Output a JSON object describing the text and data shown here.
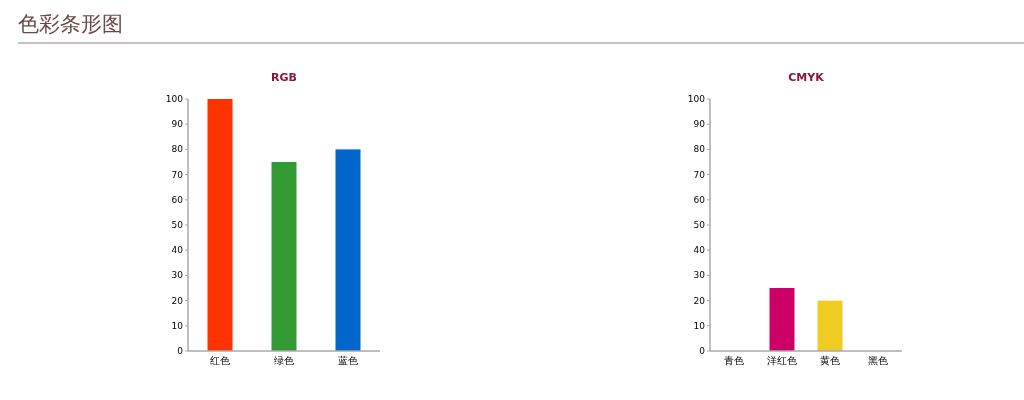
{
  "chart_data": [
    {
      "type": "other",
      "title": "色彩条形图"
    },
    {
      "type": "bar",
      "title": "RGB",
      "categories": [
        "红色",
        "绿色",
        "蓝色"
      ],
      "colors": [
        "#ff3300",
        "#339933",
        "#0066cc"
      ],
      "values": [
        100,
        75,
        80
      ],
      "ylim": [
        0,
        100
      ],
      "yticks": [
        0,
        10,
        20,
        30,
        40,
        50,
        60,
        70,
        80,
        90,
        100
      ]
    },
    {
      "type": "bar",
      "title": "CMYK",
      "categories": [
        "青色",
        "洋红色",
        "黄色",
        "黑色"
      ],
      "colors": [
        "#00aeef",
        "#cc0066",
        "#eecc22",
        "#000000"
      ],
      "values": [
        0,
        25,
        20,
        0
      ],
      "ylim": [
        0,
        100
      ],
      "yticks": [
        0,
        10,
        20,
        30,
        40,
        50,
        60,
        70,
        80,
        90,
        100
      ]
    }
  ]
}
